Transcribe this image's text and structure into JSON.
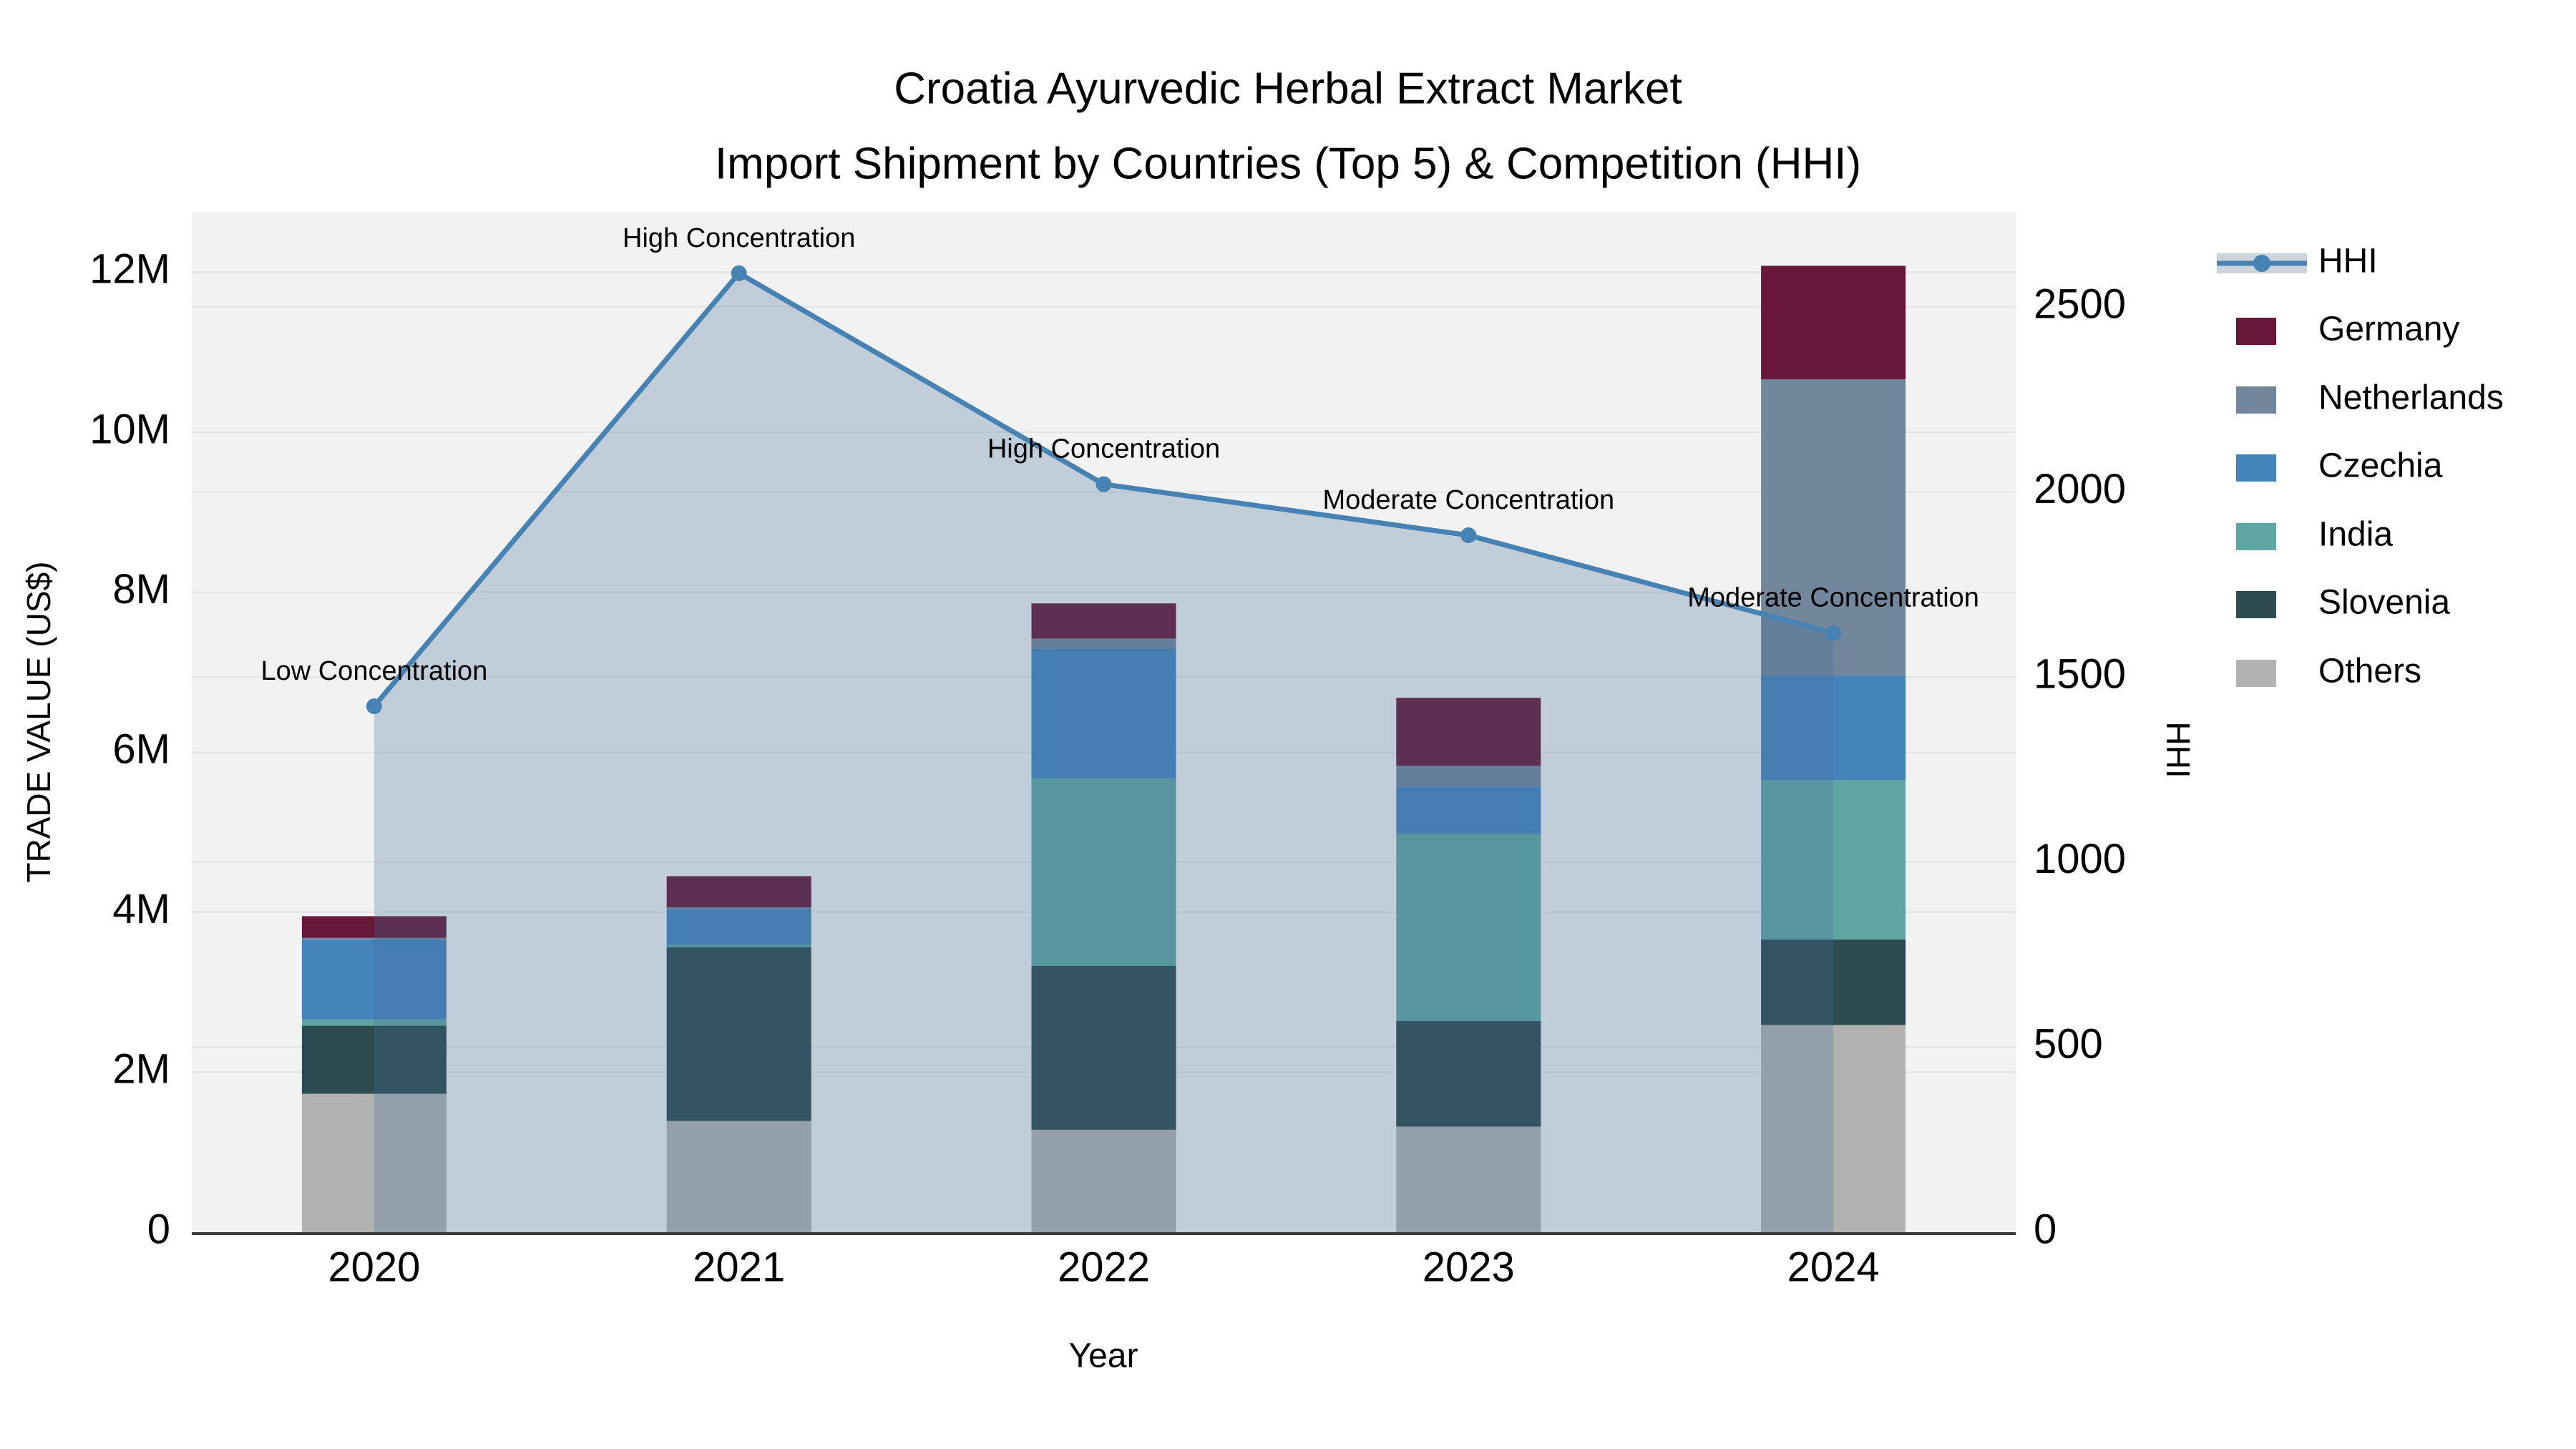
{
  "title": {
    "line1": "Croatia Ayurvedic Herbal Extract Market",
    "line2": "Import Shipment by Countries (Top 5) & Competition (HHI)"
  },
  "chart_data": {
    "type": "bar+line",
    "title": "Croatia Ayurvedic Herbal Extract Market — Import Shipment by Countries (Top 5) & Competition (HHI)",
    "xlabel": "Year",
    "ylabel_left": "TRADE VALUE (US$)",
    "ylabel_right": "HHI",
    "categories": [
      "2020",
      "2021",
      "2022",
      "2023",
      "2024"
    ],
    "bar_unit": "million US$",
    "stack_note": "bar_series listed bottom-to-top stacking order",
    "bar_series": [
      {
        "name": "Others",
        "color": "#b2b2b0",
        "values": [
          1.73,
          1.39,
          1.28,
          1.32,
          2.59
        ]
      },
      {
        "name": "Slovenia",
        "color": "#2d4b50",
        "values": [
          0.85,
          2.17,
          2.05,
          1.32,
          1.07
        ]
      },
      {
        "name": "India",
        "color": "#5fa5a3",
        "values": [
          0.08,
          0.03,
          2.34,
          2.34,
          1.99
        ]
      },
      {
        "name": "Czechia",
        "color": "#4583bb",
        "values": [
          1.0,
          0.45,
          1.62,
          0.59,
          1.31
        ]
      },
      {
        "name": "Netherlands",
        "color": "#72869c",
        "values": [
          0.02,
          0.02,
          0.13,
          0.26,
          3.7
        ]
      },
      {
        "name": "Germany",
        "color": "#67183a",
        "values": [
          0.27,
          0.39,
          0.44,
          0.85,
          1.42
        ]
      }
    ],
    "bar_totals": [
      3.95,
      4.45,
      7.86,
      6.68,
      12.08
    ],
    "line_series": {
      "name": "HHI",
      "color": "#4682b4",
      "area_fill": "rgba(70,110,150,0.28)",
      "values": [
        1421,
        2591,
        2021,
        1883,
        1619
      ],
      "annotations": [
        "Low Concentration",
        "High Concentration",
        "High Concentration",
        "Moderate Concentration",
        "Moderate Concentration"
      ]
    },
    "left_axis": {
      "max": 12.755,
      "ticks": [
        {
          "v": 0,
          "label": "0"
        },
        {
          "v": 2,
          "label": "2M"
        },
        {
          "v": 4,
          "label": "4M"
        },
        {
          "v": 6,
          "label": "6M"
        },
        {
          "v": 8,
          "label": "8M"
        },
        {
          "v": 10,
          "label": "10M"
        },
        {
          "v": 12,
          "label": "12M"
        }
      ]
    },
    "right_axis": {
      "max": 2757,
      "ticks": [
        {
          "v": 0,
          "label": "0"
        },
        {
          "v": 500,
          "label": "500"
        },
        {
          "v": 1000,
          "label": "1000"
        },
        {
          "v": 1500,
          "label": "1500"
        },
        {
          "v": 2000,
          "label": "2000"
        },
        {
          "v": 2500,
          "label": "2500"
        }
      ]
    },
    "legend_order": [
      "HHI",
      "Germany",
      "Netherlands",
      "Czechia",
      "India",
      "Slovenia",
      "Others"
    ],
    "grid": true,
    "legend_position": "right-top",
    "plot_background": "#f2f2f2",
    "gridline_color": "#e3e3e3",
    "axisline_color": "#3c3c3c"
  }
}
